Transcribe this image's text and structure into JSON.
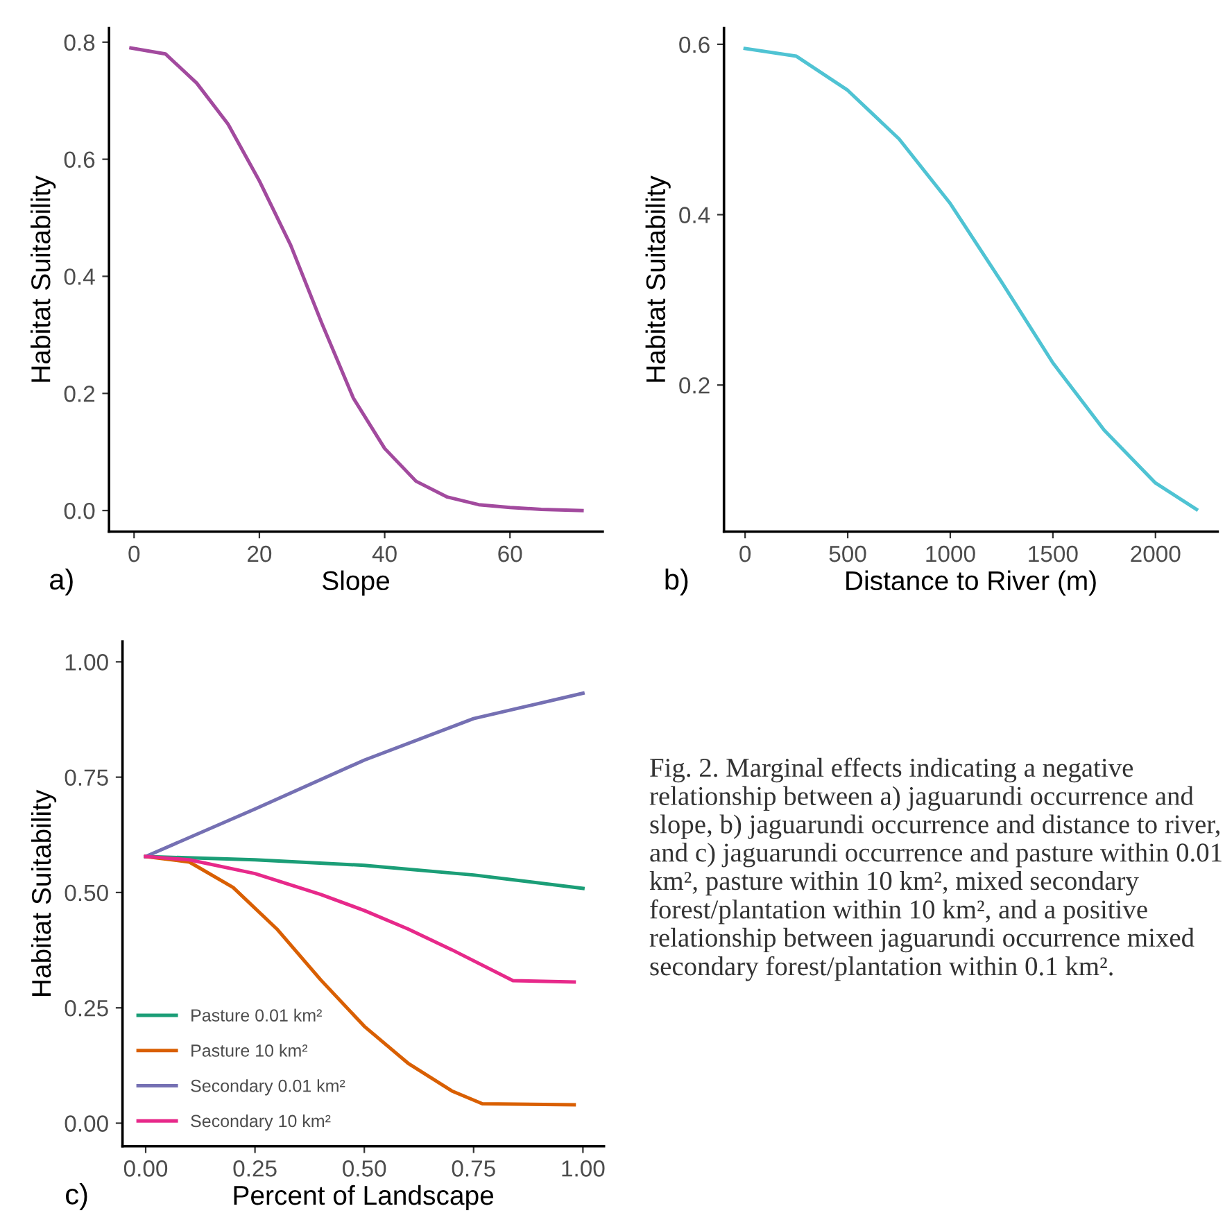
{
  "chart_data": [
    {
      "type": "line",
      "xlabel": "Slope",
      "ylabel": "Habitat Suitability",
      "annotations": [
        "a)"
      ],
      "xlim": [
        -4,
        74.8
      ],
      "ylim": [
        -0.036,
        0.824
      ],
      "xticks": [
        0,
        20,
        40,
        60
      ],
      "yticks": [
        {
          "value": 0,
          "label": "0.0"
        },
        0.2,
        0.4,
        0.6,
        0.8
      ],
      "grid": false,
      "legend": false,
      "series": [
        {
          "color": "#a24a9e",
          "x": [
            -0.5,
            5,
            10,
            15,
            20,
            25,
            30,
            35,
            40,
            45,
            50,
            55,
            60,
            65,
            71.5
          ],
          "values": [
            0.79,
            0.78,
            0.73,
            0.66,
            0.563,
            0.453,
            0.319,
            0.192,
            0.106,
            0.05,
            0.023,
            0.01,
            0.005,
            0.002,
            0.0
          ]
        }
      ]
    },
    {
      "type": "line",
      "xlabel": "Distance to River (m)",
      "ylabel": "Habitat Suitability",
      "annotations": [
        "b)"
      ],
      "xlim": [
        -103,
        2303
      ],
      "ylim": [
        0.028,
        0.619
      ],
      "xticks": [
        0,
        500,
        1000,
        1500,
        2000
      ],
      "yticks": [
        0.2,
        0.4,
        0.6
      ],
      "grid": false,
      "legend": false,
      "series": [
        {
          "color": "#4fc3d3",
          "x": [
            0,
            250,
            500,
            750,
            1000,
            1250,
            1500,
            1750,
            2000,
            2200
          ],
          "values": [
            0.595,
            0.586,
            0.546,
            0.489,
            0.413,
            0.321,
            0.226,
            0.147,
            0.085,
            0.054
          ]
        }
      ]
    },
    {
      "type": "line",
      "xlabel": "Percent of Landscape",
      "ylabel": "Habitat Suitability",
      "annotations": [
        "c)"
      ],
      "xlim": [
        -0.053,
        1.048
      ],
      "ylim": [
        -0.05,
        1.044
      ],
      "xticks": [
        {
          "value": 0,
          "label": "0.00"
        },
        0.25,
        {
          "value": 0.5,
          "label": "0.50"
        },
        0.75,
        {
          "value": 1,
          "label": "1.00"
        }
      ],
      "yticks": [
        {
          "value": 0,
          "label": "0.00"
        },
        0.25,
        {
          "value": 0.5,
          "label": "0.50"
        },
        0.75,
        {
          "value": 1,
          "label": "1.00"
        }
      ],
      "grid": false,
      "legend": "bottom left",
      "series": [
        {
          "name": "Pasture 0.01 km²",
          "color": "#1b9e77",
          "x": [
            0,
            0.25,
            0.5,
            0.75,
            1.0
          ],
          "values": [
            0.578,
            0.571,
            0.559,
            0.538,
            0.509
          ]
        },
        {
          "name": "Pasture 10 km²",
          "color": "#d95f02",
          "x": [
            0,
            0.1,
            0.2,
            0.3,
            0.4,
            0.5,
            0.6,
            0.7,
            0.77,
            0.98
          ],
          "values": [
            0.578,
            0.566,
            0.511,
            0.421,
            0.311,
            0.21,
            0.13,
            0.07,
            0.042,
            0.04
          ]
        },
        {
          "name": "Secondary 0.01 km²",
          "color": "#7570b3",
          "x": [
            0,
            0.25,
            0.5,
            0.75,
            1.0
          ],
          "values": [
            0.578,
            0.681,
            0.787,
            0.877,
            0.932
          ]
        },
        {
          "name": "Secondary 10 km²",
          "color": "#e7298a",
          "x": [
            0,
            0.1,
            0.25,
            0.4,
            0.5,
            0.6,
            0.7,
            0.84,
            0.98
          ],
          "values": [
            0.578,
            0.571,
            0.541,
            0.496,
            0.461,
            0.421,
            0.376,
            0.309,
            0.306
          ]
        }
      ]
    },
    {
      "type": "other",
      "annotations": [
        "Fig. 2. Marginal effects indicating a negative relationship between a) jaguarundi occurrence and slope, b) jaguarundi occurrence and distance to river, and c) jaguarundi occurrence and pasture within 0.01 km², pasture within 10 km², mixed secondary forest/plantation within 10 km², and a positive relationship between jaguarundi occurrence mixed secondary forest/plantation within 0.1 km²."
      ]
    }
  ]
}
